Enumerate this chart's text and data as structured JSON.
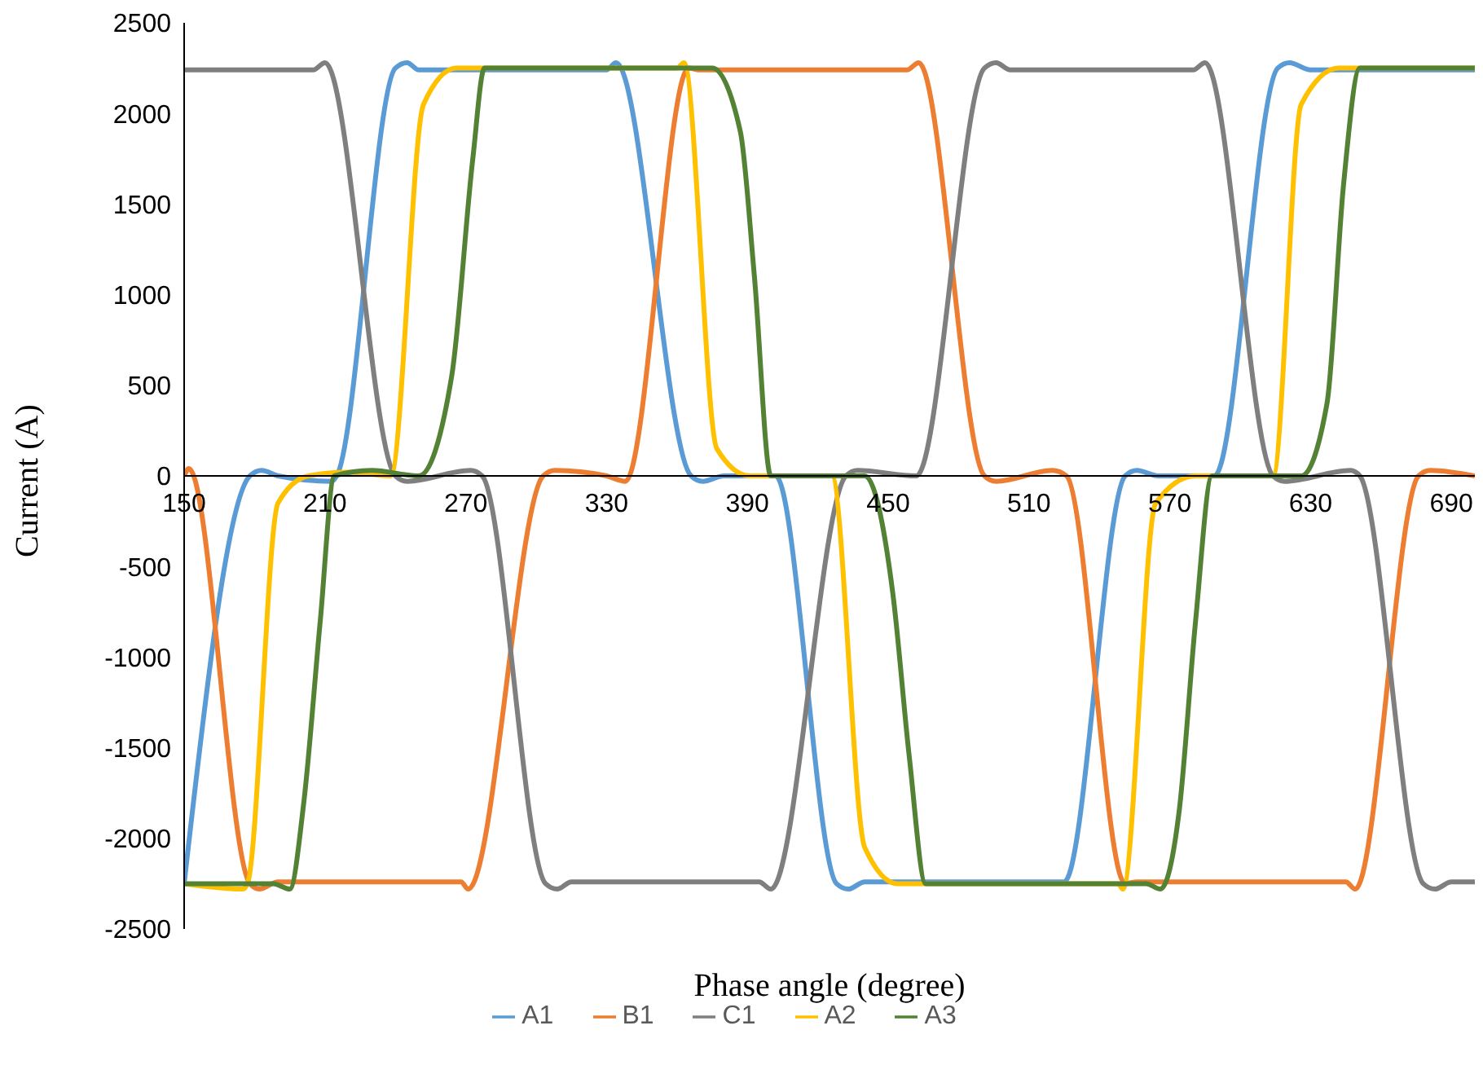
{
  "chart_data": {
    "type": "line",
    "xlabel": "Phase angle (degree)",
    "ylabel": "Current (A)",
    "xlim": [
      150,
      700
    ],
    "xticks": [
      150,
      210,
      270,
      330,
      390,
      450,
      510,
      570,
      630,
      690
    ],
    "ylim": [
      -2500,
      2500
    ],
    "yticks": [
      -2500,
      -2000,
      -1500,
      -1000,
      -500,
      0,
      500,
      1000,
      1500,
      2000,
      2500
    ],
    "grid": false,
    "legend": "bottom",
    "marker": "none",
    "line_style": "solid",
    "series": [
      {
        "name": "A1",
        "color": "#5b9bd5",
        "x": [
          150,
          178,
          183,
          190,
          213,
          215,
          240,
          245,
          250,
          330,
          334,
          366,
          371,
          380,
          402,
          428,
          433,
          440,
          525,
          551,
          556,
          565,
          589,
          616,
          621,
          630,
          700
        ],
        "values": [
          -2250,
          0,
          30,
          0,
          -30,
          0,
          2250,
          2280,
          2240,
          2240,
          2280,
          0,
          -30,
          0,
          0,
          -2250,
          -2280,
          -2240,
          -2240,
          0,
          30,
          0,
          0,
          2250,
          2280,
          2240,
          2240
        ]
      },
      {
        "name": "B1",
        "color": "#ed7d31",
        "x": [
          150,
          152,
          178,
          182,
          190,
          268,
          271,
          303,
          308,
          330,
          338,
          365,
          370,
          458,
          463,
          491,
          496,
          520,
          526,
          551,
          556,
          645,
          649,
          676,
          681,
          700
        ],
        "values": [
          0,
          40,
          -2250,
          -2280,
          -2240,
          -2240,
          -2280,
          0,
          30,
          0,
          -30,
          2250,
          2240,
          2240,
          2280,
          0,
          -30,
          30,
          0,
          -2250,
          -2240,
          -2240,
          -2280,
          0,
          30,
          0
        ]
      },
      {
        "name": "C1",
        "color": "#7f7f7f",
        "x": [
          150,
          205,
          210,
          240,
          245,
          272,
          277,
          304,
          309,
          315,
          395,
          400,
          432,
          437,
          462,
          491,
          496,
          502,
          580,
          585,
          614,
          619,
          647,
          651,
          678,
          683,
          690,
          700
        ],
        "values": [
          2240,
          2240,
          2280,
          0,
          -30,
          30,
          0,
          -2250,
          -2280,
          -2240,
          -2240,
          -2280,
          0,
          30,
          0,
          2250,
          2280,
          2240,
          2240,
          2280,
          0,
          -30,
          30,
          0,
          -2250,
          -2280,
          -2240,
          -2240
        ]
      },
      {
        "name": "A2",
        "color": "#ffc000",
        "x": [
          150,
          175,
          177,
          190,
          203,
          220,
          238,
          252,
          266,
          360,
          363,
          377,
          391,
          426,
          440,
          454,
          548,
          550,
          564,
          581,
          612,
          614,
          626,
          642,
          700
        ],
        "values": [
          -2250,
          -2280,
          -2250,
          -150,
          0,
          20,
          0,
          2050,
          2250,
          2250,
          2280,
          150,
          0,
          0,
          -2050,
          -2250,
          -2250,
          -2280,
          -150,
          0,
          0,
          0,
          2050,
          2250,
          2250
        ]
      },
      {
        "name": "A3",
        "color": "#548235",
        "x": [
          150,
          188,
          195,
          201,
          208,
          214,
          230,
          250,
          264,
          273,
          278,
          375,
          387,
          393,
          400,
          440,
          452,
          459,
          466,
          560,
          566,
          574,
          581,
          588,
          626,
          637,
          644,
          651,
          700
        ],
        "values": [
          -2250,
          -2250,
          -2280,
          -1800,
          -800,
          0,
          30,
          0,
          550,
          1750,
          2250,
          2250,
          1900,
          1100,
          0,
          0,
          -650,
          -1550,
          -2250,
          -2250,
          -2280,
          -1850,
          -800,
          0,
          0,
          400,
          1600,
          2250,
          2250
        ]
      }
    ]
  }
}
